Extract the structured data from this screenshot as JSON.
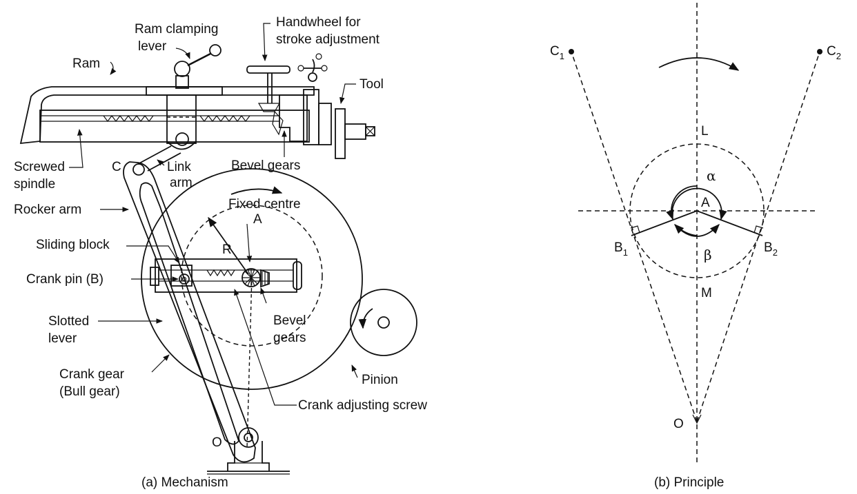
{
  "mechanism": {
    "caption": "(a) Mechanism",
    "labels": {
      "ram_clamping_lever_1": "Ram clamping",
      "ram_clamping_lever_2": "lever",
      "handwheel_1": "Handwheel for",
      "handwheel_2": "stroke adjustment",
      "ram": "Ram",
      "tool": "Tool",
      "screwed_spindle_1": "Screwed",
      "screwed_spindle_2": "spindle",
      "c": "C",
      "link_arm_1": "Link",
      "link_arm_2": "arm",
      "bevel_gears_top": "Bevel gears",
      "rocker_arm": "Rocker arm",
      "fixed_centre": "Fixed centre",
      "a": "A",
      "sliding_block": "Sliding block",
      "r": "R",
      "crank_pin": "Crank pin (B)",
      "slotted_lever_1": "Slotted",
      "slotted_lever_2": "lever",
      "bevel_gears_lower_1": "Bevel",
      "bevel_gears_lower_2": "gears",
      "crank_gear_1": "Crank gear",
      "crank_gear_2": "(Bull gear)",
      "pinion": "Pinion",
      "crank_adjusting_screw": "Crank adjusting screw",
      "o": "O"
    }
  },
  "principle": {
    "caption": "(b) Principle",
    "labels": {
      "c1": "C",
      "c1_sub": "1",
      "c2": "C",
      "c2_sub": "2",
      "l": "L",
      "alpha": "α",
      "a": "A",
      "b1": "B",
      "b1_sub": "1",
      "b2": "B",
      "b2_sub": "2",
      "beta": "β",
      "m": "M",
      "o": "O"
    }
  }
}
